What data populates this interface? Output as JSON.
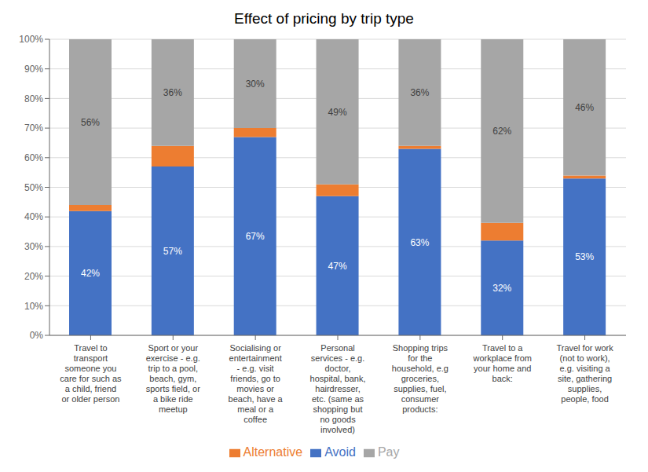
{
  "chart_data": {
    "type": "bar",
    "title": "Effect of pricing by trip type",
    "categories": [
      "Travel to\ntransport\nsomeone you\ncare for such as\na child, friend\nor older person",
      "Sport or your\nexercise - e.g.\ntrip to a pool,\nbeach, gym,\nsports field, or\na bike ride\nmeetup",
      "Socialising or\nentertainment\n- e.g. visit\nfriends, go to\nmovies or\nbeach, have a\nmeal or a\ncoffee",
      "Personal\nservices - e.g.\ndoctor,\nhospital, bank,\nhairdresser,\netc. (same as\nshopping but\nno goods\ninvolved)",
      "Shopping trips\nfor the\nhousehold, e.g\ngroceries,\nsupplies, fuel,\nconsumer\nproducts:",
      "Travel to a\nworkplace from\nyour home and\nback:",
      "Travel for work\n(not to work),\ne.g. visiting a\nsite, gathering\nsupplies,\npeople, food"
    ],
    "series": [
      {
        "name": "Avoid",
        "color": "#4472C4",
        "values": [
          42,
          57,
          67,
          47,
          63,
          32,
          53
        ],
        "value_labels": [
          "42%",
          "57%",
          "67%",
          "47%",
          "63%",
          "32%",
          "53%"
        ],
        "data_labels": true
      },
      {
        "name": "Alternative",
        "color": "#ED7D31",
        "values": [
          2,
          7,
          3,
          4,
          1,
          6,
          1
        ],
        "data_labels": false
      },
      {
        "name": "Pay",
        "color": "#A6A6A6",
        "values": [
          56,
          36,
          30,
          49,
          36,
          62,
          46
        ],
        "value_labels": [
          "56%",
          "36%",
          "30%",
          "49%",
          "36%",
          "62%",
          "46%"
        ],
        "data_labels": true
      }
    ],
    "stacked": true,
    "ylim": [
      0,
      100
    ],
    "yticks": [
      {
        "value": 0,
        "label": "0%"
      },
      {
        "value": 10,
        "label": "10%"
      },
      {
        "value": 20,
        "label": "20%"
      },
      {
        "value": 30,
        "label": "30%"
      },
      {
        "value": 40,
        "label": "40%"
      },
      {
        "value": 50,
        "label": "50%"
      },
      {
        "value": 60,
        "label": "60%"
      },
      {
        "value": 70,
        "label": "70%"
      },
      {
        "value": 80,
        "label": "80%"
      },
      {
        "value": 90,
        "label": "90%"
      },
      {
        "value": 100,
        "label": "100%"
      }
    ],
    "grid": true,
    "legend": "bottom"
  }
}
